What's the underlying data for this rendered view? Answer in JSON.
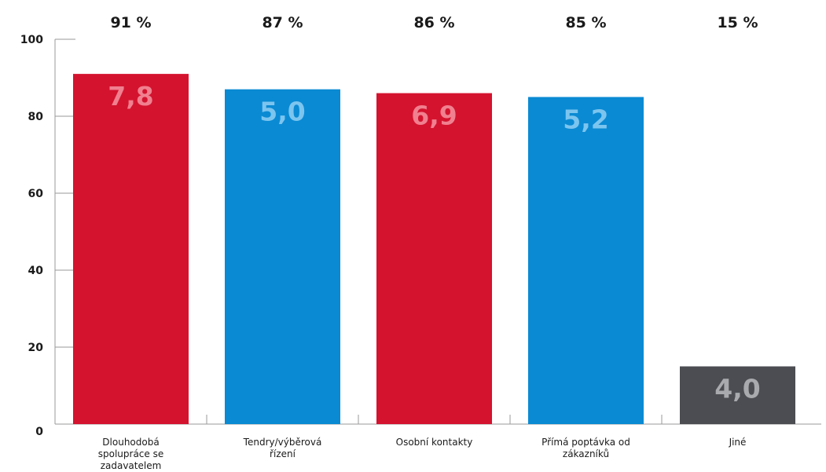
{
  "chart_data": {
    "type": "bar",
    "title": "",
    "xlabel": "",
    "ylabel": "",
    "ylim": [
      0,
      100
    ],
    "yticks": [
      0,
      20,
      40,
      60,
      80,
      100
    ],
    "grid": false,
    "categories": [
      [
        "Dlouhodobá",
        "spolupráce se",
        "zadavatelem"
      ],
      [
        "Tendry/výběrová",
        "řízení"
      ],
      [
        "Osobní kontakty"
      ],
      [
        "Přímá poptávka od",
        "zákazníků"
      ],
      [
        "Jiné"
      ]
    ],
    "values": [
      91,
      87,
      86,
      85,
      15
    ],
    "top_labels": [
      "91 %",
      "87 %",
      "86 %",
      "85 %",
      "15 %"
    ],
    "bar_labels": [
      "7,8",
      "5,0",
      "6,9",
      "5,2",
      "4,0"
    ],
    "colors": {
      "bars": [
        "#d4132f",
        "#0a8ad3",
        "#d4132f",
        "#0a8ad3",
        "#4b4d52"
      ],
      "bar_label_text": [
        "#f0808f",
        "#7cc5ef",
        "#f0808f",
        "#7cc5ef",
        "#a8aaad"
      ],
      "axis": "#9a9a9a",
      "text": "#1a1a1a"
    }
  }
}
